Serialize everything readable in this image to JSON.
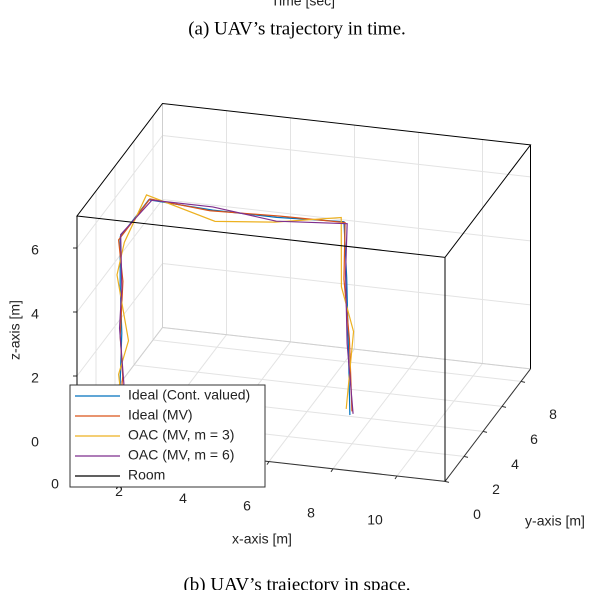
{
  "chart_data": {
    "type": "line3d",
    "top_caption_axis": "Time [sec]",
    "top_caption": "(a) UAV’s trajectory in time.",
    "caption": "(b) UAV’s trajectory in space.",
    "xlabel": "x-axis [m]",
    "ylabel": "y-axis [m]",
    "zlabel": "z-axis [m]",
    "xlim": [
      0,
      11.5
    ],
    "ylim": [
      0,
      9
    ],
    "zlim": [
      0,
      7
    ],
    "xticks": [
      0,
      2,
      4,
      6,
      8,
      10
    ],
    "yticks": [
      0,
      2,
      4,
      6,
      8
    ],
    "zticks": [
      0,
      2,
      4,
      6
    ],
    "grid": true,
    "legend": "lower left",
    "series": [
      {
        "name": "Ideal (Cont. valued)",
        "color": "#0072BD",
        "x": [
          1.35,
          1.35,
          1.4,
          1.35,
          1.35,
          1.5,
          3.5,
          5.5,
          7.6,
          7.7,
          7.75,
          7.8
        ],
        "y": [
          0,
          0,
          0,
          0,
          0,
          2.5,
          2.5,
          2.5,
          2.5,
          2.45,
          2.45,
          2.45
        ],
        "z": [
          0.7,
          2,
          3.5,
          5,
          6.5,
          6.7,
          6.6,
          6.6,
          6.7,
          5,
          3,
          0.7
        ]
      },
      {
        "name": "Ideal (MV)",
        "color": "#D95319",
        "x": [
          1.3,
          1.4,
          1.35,
          1.42,
          1.3,
          1.55,
          3.4,
          5.6,
          7.65,
          7.6,
          7.8,
          7.85
        ],
        "y": [
          0,
          0.1,
          0,
          0.05,
          0,
          2.45,
          2.55,
          2.5,
          2.45,
          2.5,
          2.4,
          2.5
        ],
        "z": [
          0.8,
          2.1,
          3.4,
          5.1,
          6.4,
          6.75,
          6.55,
          6.65,
          6.7,
          4.9,
          3.1,
          0.8
        ]
      },
      {
        "name": "OAC (MV, m = 3)",
        "color": "#EDB120",
        "x": [
          1.45,
          1.3,
          1.55,
          1.25,
          1.45,
          1.4,
          3.6,
          5.4,
          7.5,
          7.55,
          7.9,
          7.7
        ],
        "y": [
          0.1,
          0,
          0.2,
          0,
          0.1,
          2.6,
          2.4,
          2.6,
          2.55,
          2.4,
          2.5,
          2.4
        ],
        "z": [
          0.6,
          2.2,
          3.2,
          5.3,
          6.3,
          6.8,
          6.3,
          6.4,
          6.8,
          4.7,
          3.3,
          0.9
        ]
      },
      {
        "name": "OAC (MV, m = 6)",
        "color": "#7E2F8E",
        "x": [
          1.25,
          1.45,
          1.3,
          1.4,
          1.35,
          1.6,
          3.5,
          5.5,
          7.7,
          7.65,
          7.7,
          7.9
        ],
        "y": [
          0,
          0.05,
          0.1,
          0,
          0.05,
          2.5,
          2.5,
          2.45,
          2.5,
          2.5,
          2.5,
          2.45
        ],
        "z": [
          0.75,
          1.9,
          3.6,
          4.9,
          6.55,
          6.7,
          6.7,
          6.5,
          6.65,
          5.1,
          2.9,
          0.75
        ]
      },
      {
        "name": "Room",
        "color": "#000000",
        "x": [
          0,
          11.5
        ],
        "y": [
          0,
          9
        ],
        "z": [
          0,
          7
        ]
      }
    ]
  }
}
